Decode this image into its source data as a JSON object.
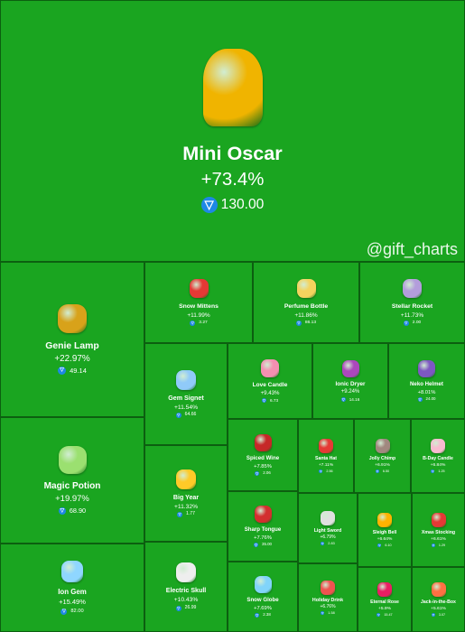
{
  "watermark": "@gift_charts",
  "tiles": [
    {
      "id": "mini-oscar",
      "name": "Mini Oscar",
      "change": "+73.4%",
      "price": "130.00",
      "icon": "oscar-trophy-icon",
      "color": "#f0b400"
    },
    {
      "id": "genie-lamp",
      "name": "Genie Lamp",
      "change": "+22.97%",
      "price": "49.14",
      "icon": "genie-lamp-icon",
      "color": "#d8a21a"
    },
    {
      "id": "magic-potion",
      "name": "Magic Potion",
      "change": "+19.97%",
      "price": "68.90",
      "icon": "potion-bottle-icon",
      "color": "#9be070"
    },
    {
      "id": "ion-gem",
      "name": "Ion Gem",
      "change": "+15.49%",
      "price": "82.00",
      "icon": "gem-icon",
      "color": "#8fd6ff"
    },
    {
      "id": "snow-mittens",
      "name": "Snow Mittens",
      "change": "+11.99%",
      "price": "3.27",
      "icon": "mittens-icon",
      "color": "#e53935"
    },
    {
      "id": "perfume-bottle",
      "name": "Perfume Bottle",
      "change": "+11.86%",
      "price": "86.13",
      "icon": "perfume-icon",
      "color": "#f4d35e"
    },
    {
      "id": "stellar-rocket",
      "name": "Stellar Rocket",
      "change": "+11.73%",
      "price": "2.00",
      "icon": "rocket-icon",
      "color": "#b39ddb"
    },
    {
      "id": "gem-signet",
      "name": "Gem Signet",
      "change": "+11.54%",
      "price": "64.66",
      "icon": "ring-icon",
      "color": "#90caf9"
    },
    {
      "id": "love-candle",
      "name": "Love Candle",
      "change": "+9.43%",
      "price": "6.73",
      "icon": "candle-icon",
      "color": "#f48fb1"
    },
    {
      "id": "ionic-dryer",
      "name": "Ionic Dryer",
      "change": "+9.24%",
      "price": "14.16",
      "icon": "hair-dryer-icon",
      "color": "#ab47bc"
    },
    {
      "id": "neko-helmet",
      "name": "Neko Helmet",
      "change": "+8.01%",
      "price": "24.00",
      "icon": "helmet-icon",
      "color": "#7e57c2"
    },
    {
      "id": "big-year",
      "name": "Big Year",
      "change": "+11.32%",
      "price": "1.77",
      "icon": "big-year-icon",
      "color": "#ffca28"
    },
    {
      "id": "electric-skull",
      "name": "Electric Skull",
      "change": "+10.43%",
      "price": "26.99",
      "icon": "skull-icon",
      "color": "#eeeeee"
    },
    {
      "id": "spiced-wine",
      "name": "Spiced Wine",
      "change": "+7.85%",
      "price": "2.06",
      "icon": "wine-icon",
      "color": "#c62828"
    },
    {
      "id": "santa-hat",
      "name": "Santa Hat",
      "change": "+7.11%",
      "price": "2.56",
      "icon": "santa-hat-icon",
      "color": "#e53935"
    },
    {
      "id": "jolly-chimp",
      "name": "Jolly Chimp",
      "change": "+6.91%",
      "price": "6.50",
      "icon": "chimp-icon",
      "color": "#a1887f"
    },
    {
      "id": "bday-candle",
      "name": "B-Day Candle",
      "change": "+6.84%",
      "price": "1.25",
      "icon": "birthday-cake-icon",
      "color": "#f8bbd0"
    },
    {
      "id": "sharp-tongue",
      "name": "Sharp Tongue",
      "change": "+7.76%",
      "price": "35.00",
      "icon": "tongue-icon",
      "color": "#d32f2f"
    },
    {
      "id": "light-sword",
      "name": "Light Sword",
      "change": "+6.79%",
      "price": "2.83",
      "icon": "sword-icon",
      "color": "#e0e0e0"
    },
    {
      "id": "sleigh-bell",
      "name": "Sleigh Bell",
      "change": "+6.64%",
      "price": "6.10",
      "icon": "bell-icon",
      "color": "#ffb300"
    },
    {
      "id": "xmas-stocking",
      "name": "Xmas Stocking",
      "change": "+6.61%",
      "price": "1.29",
      "icon": "stocking-icon",
      "color": "#e53935"
    },
    {
      "id": "snow-globe",
      "name": "Snow Globe",
      "change": "+7.69%",
      "price": "2.38",
      "icon": "snow-globe-icon",
      "color": "#81d4fa"
    },
    {
      "id": "holiday-drink",
      "name": "Holiday Drink",
      "change": "+6.76%",
      "price": "1.58",
      "icon": "drink-icon",
      "color": "#ef5350"
    },
    {
      "id": "eternal-rose",
      "name": "Eternal Rose",
      "change": "+5.9%",
      "price": "15.47",
      "icon": "rose-icon",
      "color": "#e91e63"
    },
    {
      "id": "jack-in-the-box",
      "name": "Jack-in-the-Box",
      "change": "+5.61%",
      "price": "3.07",
      "icon": "jack-in-the-box-icon",
      "color": "#ff7043"
    }
  ]
}
